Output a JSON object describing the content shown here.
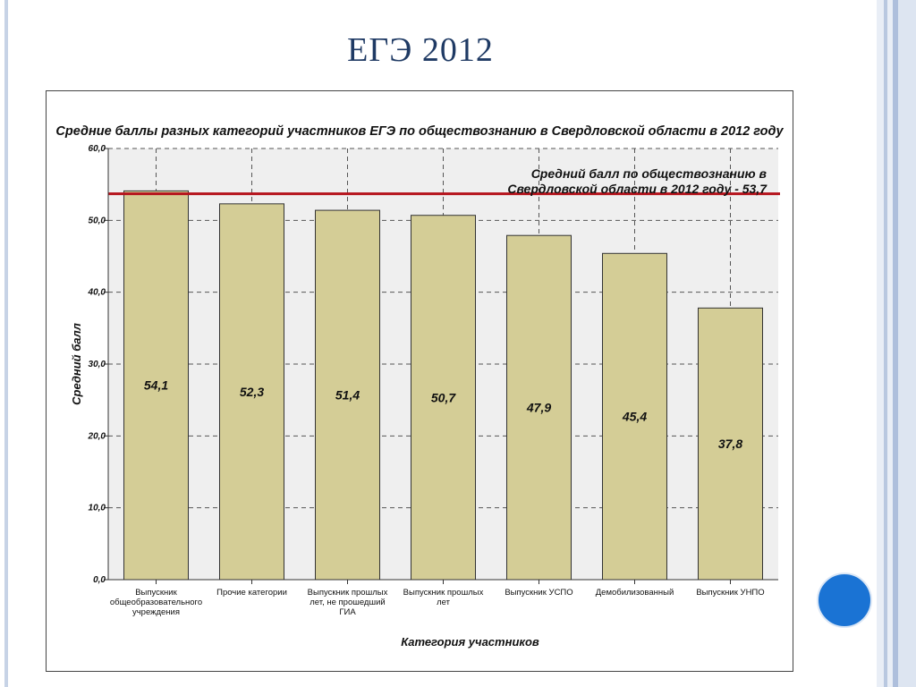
{
  "slide": {
    "title": "ЕГЭ 2012"
  },
  "colors": {
    "bar_fill": "#d4cd96",
    "bar_stroke": "#333333",
    "reference_line": "#b5121b",
    "plot_background": "#efefef",
    "title_color": "#1f3a64",
    "circle": "#1a73d4"
  },
  "chart_data": {
    "type": "bar",
    "title": "Средние баллы разных категорий участников ЕГЭ по обществознанию в Свердловской области в 2012 году",
    "xlabel": "Категория участников",
    "ylabel": "Средний балл",
    "ylim": [
      0,
      60
    ],
    "yticks": [
      "0,0",
      "10,0",
      "20,0",
      "30,0",
      "40,0",
      "50,0",
      "60,0"
    ],
    "grid": true,
    "categories": [
      [
        "Выпускник",
        "общеобразовательного",
        "учреждения"
      ],
      [
        "Прочие категории"
      ],
      [
        "Выпускник прошлых",
        "лет, не прошедший",
        "ГИА"
      ],
      [
        "Выпускник прошлых",
        "лет"
      ],
      [
        "Выпускник УСПО"
      ],
      [
        "Демобилизованный"
      ],
      [
        "Выпускник УНПО"
      ]
    ],
    "values": [
      54.1,
      52.3,
      51.4,
      50.7,
      47.9,
      45.4,
      37.8
    ],
    "value_labels": [
      "54,1",
      "52,3",
      "51,4",
      "50,7",
      "47,9",
      "45,4",
      "37,8"
    ],
    "reference": {
      "value": 53.7,
      "label_lines": [
        "Средний балл по обществознанию в",
        "Свердловской области в 2012 году - 53,7"
      ]
    }
  }
}
